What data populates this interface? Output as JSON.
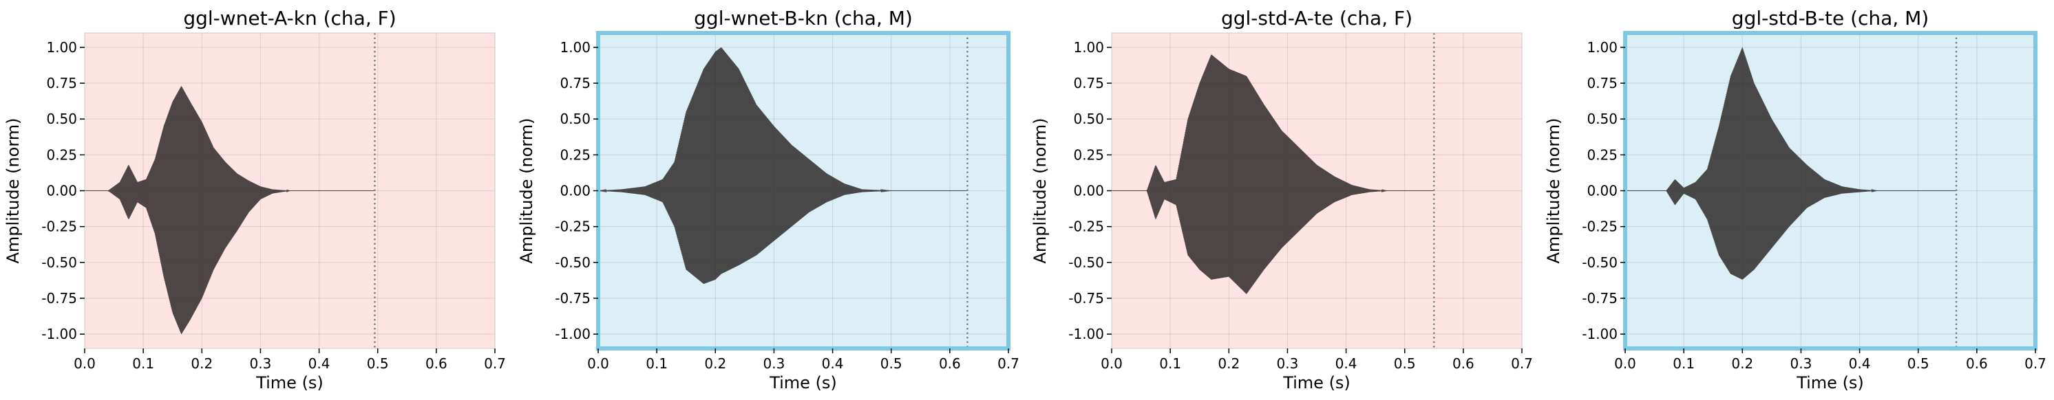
{
  "chart_data": [
    {
      "type": "line",
      "title": "ggl-wnet-A-kn (cha, F)",
      "xlabel": "Time (s)",
      "ylabel": "Amplitude (norm)",
      "xlim": [
        0,
        0.7
      ],
      "ylim": [
        -1.1,
        1.1
      ],
      "xticks": [
        "0.0",
        "0.1",
        "0.2",
        "0.3",
        "0.4",
        "0.5",
        "0.6",
        "0.7"
      ],
      "yticks": [
        "1.00",
        "0.75",
        "0.50",
        "0.25",
        "0.00",
        "-0.25",
        "-0.50",
        "-0.75",
        "-1.00"
      ],
      "grid": true,
      "background": "#ffe4e4",
      "highlighted": false,
      "end_marker_x": 0.495,
      "envelope": {
        "t": [
          0.0,
          0.04,
          0.06,
          0.075,
          0.09,
          0.105,
          0.12,
          0.135,
          0.15,
          0.165,
          0.18,
          0.2,
          0.22,
          0.24,
          0.26,
          0.28,
          0.3,
          0.32,
          0.35,
          0.38,
          0.42,
          0.495
        ],
        "upper": [
          0.0,
          0.0,
          0.06,
          0.18,
          0.06,
          0.08,
          0.22,
          0.45,
          0.62,
          0.73,
          0.62,
          0.48,
          0.3,
          0.2,
          0.12,
          0.07,
          0.03,
          0.01,
          0.0,
          0.0,
          0.0,
          0.0
        ],
        "lower": [
          0.0,
          0.0,
          -0.06,
          -0.2,
          -0.08,
          -0.12,
          -0.3,
          -0.6,
          -0.85,
          -1.0,
          -0.9,
          -0.75,
          -0.55,
          -0.4,
          -0.28,
          -0.15,
          -0.06,
          -0.02,
          0.0,
          0.0,
          0.0,
          0.0
        ]
      }
    },
    {
      "type": "line",
      "title": "ggl-wnet-B-kn (cha, M)",
      "xlabel": "Time (s)",
      "ylabel": "Amplitude (norm)",
      "xlim": [
        0,
        0.7
      ],
      "ylim": [
        -1.1,
        1.1
      ],
      "xticks": [
        "0.0",
        "0.1",
        "0.2",
        "0.3",
        "0.4",
        "0.5",
        "0.6",
        "0.7"
      ],
      "yticks": [
        "1.00",
        "0.75",
        "0.50",
        "0.25",
        "0.00",
        "-0.25",
        "-0.50",
        "-0.75",
        "-1.00"
      ],
      "grid": true,
      "background": "#dceef6",
      "highlighted": true,
      "highlight_color": "#7ec8e3",
      "end_marker_x": 0.63,
      "envelope": {
        "t": [
          0.0,
          0.04,
          0.08,
          0.11,
          0.13,
          0.15,
          0.18,
          0.2,
          0.21,
          0.24,
          0.27,
          0.3,
          0.33,
          0.36,
          0.39,
          0.42,
          0.45,
          0.5,
          0.63
        ],
        "upper": [
          0.0,
          0.01,
          0.03,
          0.08,
          0.2,
          0.55,
          0.85,
          0.97,
          1.0,
          0.85,
          0.6,
          0.45,
          0.32,
          0.22,
          0.12,
          0.05,
          0.01,
          0.0,
          0.0
        ],
        "lower": [
          0.0,
          -0.01,
          -0.03,
          -0.08,
          -0.25,
          -0.55,
          -0.65,
          -0.62,
          -0.58,
          -0.52,
          -0.45,
          -0.35,
          -0.25,
          -0.15,
          -0.08,
          -0.03,
          -0.01,
          0.0,
          0.0
        ]
      }
    },
    {
      "type": "line",
      "title": "ggl-std-A-te (cha, F)",
      "xlabel": "Time (s)",
      "ylabel": "Amplitude (norm)",
      "xlim": [
        0,
        0.7
      ],
      "ylim": [
        -1.1,
        1.1
      ],
      "xticks": [
        "0.0",
        "0.1",
        "0.2",
        "0.3",
        "0.4",
        "0.5",
        "0.6",
        "0.7"
      ],
      "yticks": [
        "1.00",
        "0.75",
        "0.50",
        "0.25",
        "0.00",
        "-0.25",
        "-0.50",
        "-0.75",
        "-1.00"
      ],
      "grid": true,
      "background": "#ffe4e4",
      "highlighted": false,
      "end_marker_x": 0.55,
      "envelope": {
        "t": [
          0.0,
          0.06,
          0.075,
          0.09,
          0.11,
          0.13,
          0.15,
          0.17,
          0.2,
          0.23,
          0.26,
          0.29,
          0.32,
          0.35,
          0.38,
          0.41,
          0.44,
          0.47,
          0.55
        ],
        "upper": [
          0.0,
          0.0,
          0.18,
          0.06,
          0.08,
          0.5,
          0.75,
          0.95,
          0.85,
          0.8,
          0.6,
          0.42,
          0.3,
          0.18,
          0.1,
          0.04,
          0.01,
          0.0,
          0.0
        ],
        "lower": [
          0.0,
          0.0,
          -0.2,
          -0.06,
          -0.1,
          -0.45,
          -0.55,
          -0.62,
          -0.6,
          -0.72,
          -0.55,
          -0.4,
          -0.28,
          -0.16,
          -0.08,
          -0.03,
          -0.01,
          0.0,
          0.0
        ]
      }
    },
    {
      "type": "line",
      "title": "ggl-std-B-te (cha, M)",
      "xlabel": "Time (s)",
      "ylabel": "Amplitude (norm)",
      "xlim": [
        0,
        0.7
      ],
      "ylim": [
        -1.1,
        1.1
      ],
      "xticks": [
        "0.0",
        "0.1",
        "0.2",
        "0.3",
        "0.4",
        "0.5",
        "0.6",
        "0.7"
      ],
      "yticks": [
        "1.00",
        "0.75",
        "0.50",
        "0.25",
        "0.00",
        "-0.25",
        "-0.50",
        "-0.75",
        "-1.00"
      ],
      "grid": true,
      "background": "#dceef6",
      "highlighted": true,
      "highlight_color": "#7ec8e3",
      "end_marker_x": 0.565,
      "envelope": {
        "t": [
          0.0,
          0.07,
          0.085,
          0.1,
          0.12,
          0.14,
          0.16,
          0.18,
          0.2,
          0.22,
          0.25,
          0.28,
          0.31,
          0.34,
          0.37,
          0.4,
          0.43,
          0.46,
          0.565
        ],
        "upper": [
          0.0,
          0.0,
          0.08,
          0.02,
          0.06,
          0.15,
          0.45,
          0.8,
          1.0,
          0.75,
          0.5,
          0.3,
          0.18,
          0.08,
          0.03,
          0.01,
          0.0,
          0.0,
          0.0
        ],
        "lower": [
          0.0,
          0.0,
          -0.1,
          -0.02,
          -0.06,
          -0.2,
          -0.45,
          -0.58,
          -0.62,
          -0.55,
          -0.4,
          -0.25,
          -0.12,
          -0.05,
          -0.02,
          -0.01,
          0.0,
          0.0,
          0.0
        ]
      }
    }
  ]
}
